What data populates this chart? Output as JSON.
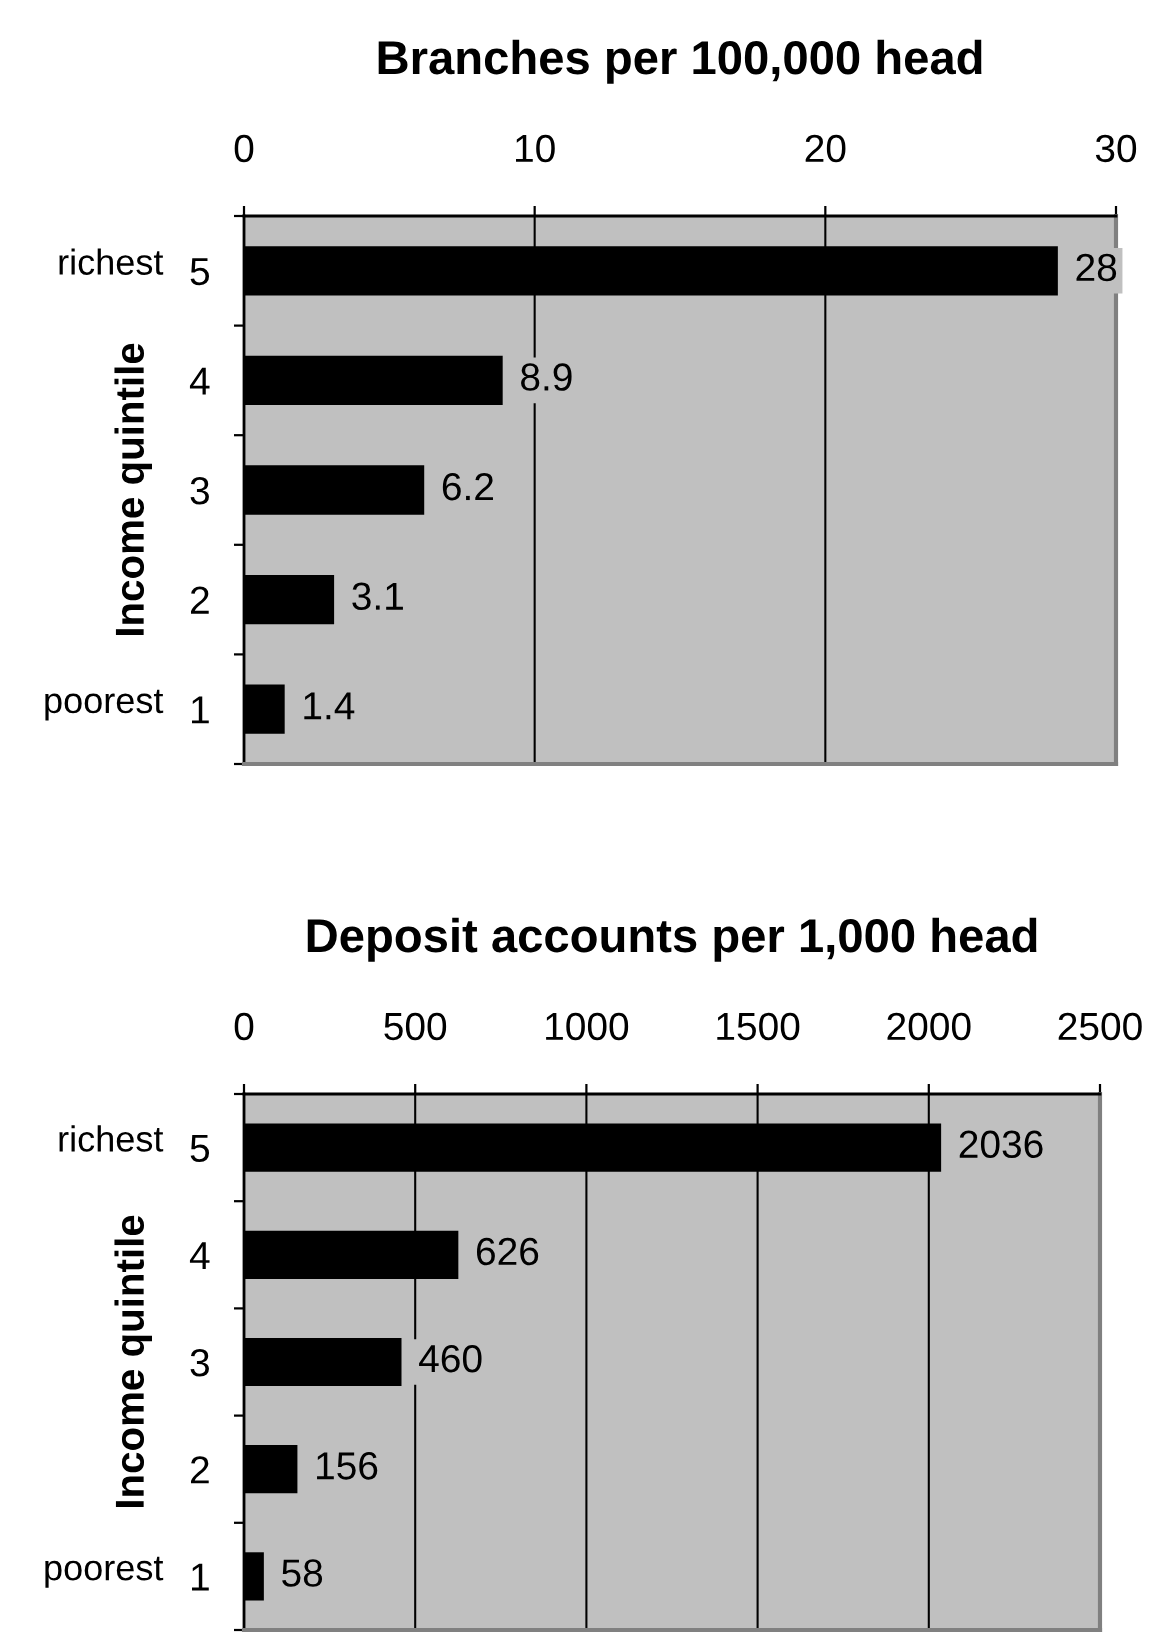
{
  "chart_data": [
    {
      "type": "bar",
      "orientation": "horizontal",
      "title": "Branches per 100,000 head",
      "ylabel": "Income quintile",
      "categories": [
        "5",
        "4",
        "3",
        "2",
        "1"
      ],
      "values": [
        28,
        8.9,
        6.2,
        3.1,
        1.4
      ],
      "color": "#000000",
      "xlim": [
        0,
        30
      ],
      "xticks": [
        0,
        10,
        20,
        30
      ],
      "grid": "x",
      "data_labels": true,
      "annotations": [
        "richest",
        "poorest"
      ]
    },
    {
      "type": "bar",
      "orientation": "horizontal",
      "title": "Deposit accounts per 1,000 head",
      "ylabel": "Income quintile",
      "categories": [
        "5",
        "4",
        "3",
        "2",
        "1"
      ],
      "values": [
        2036,
        626,
        460,
        156,
        58
      ],
      "color": "#000000",
      "xlim": [
        0,
        2500
      ],
      "xticks": [
        0,
        500,
        1000,
        1500,
        2000,
        2500
      ],
      "grid": "x",
      "data_labels": true,
      "annotations": [
        "richest",
        "poorest"
      ]
    }
  ]
}
